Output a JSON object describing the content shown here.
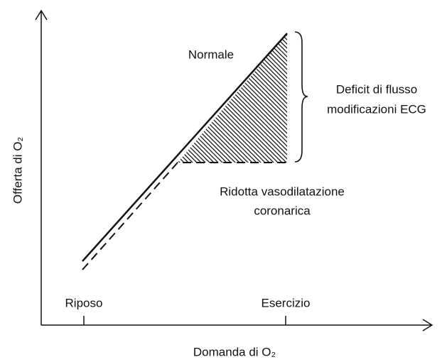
{
  "axes": {
    "y_label": "Offerta di O₂",
    "x_label": "Domanda di O₂"
  },
  "x_markers": [
    "Riposo",
    "Esercizio"
  ],
  "curves": {
    "normal": "Normale",
    "reduced": [
      "Ridotta vasodilatazione",
      "coronarica"
    ]
  },
  "brace_label": [
    "Deficit di flusso",
    "modificazioni ECG"
  ]
}
